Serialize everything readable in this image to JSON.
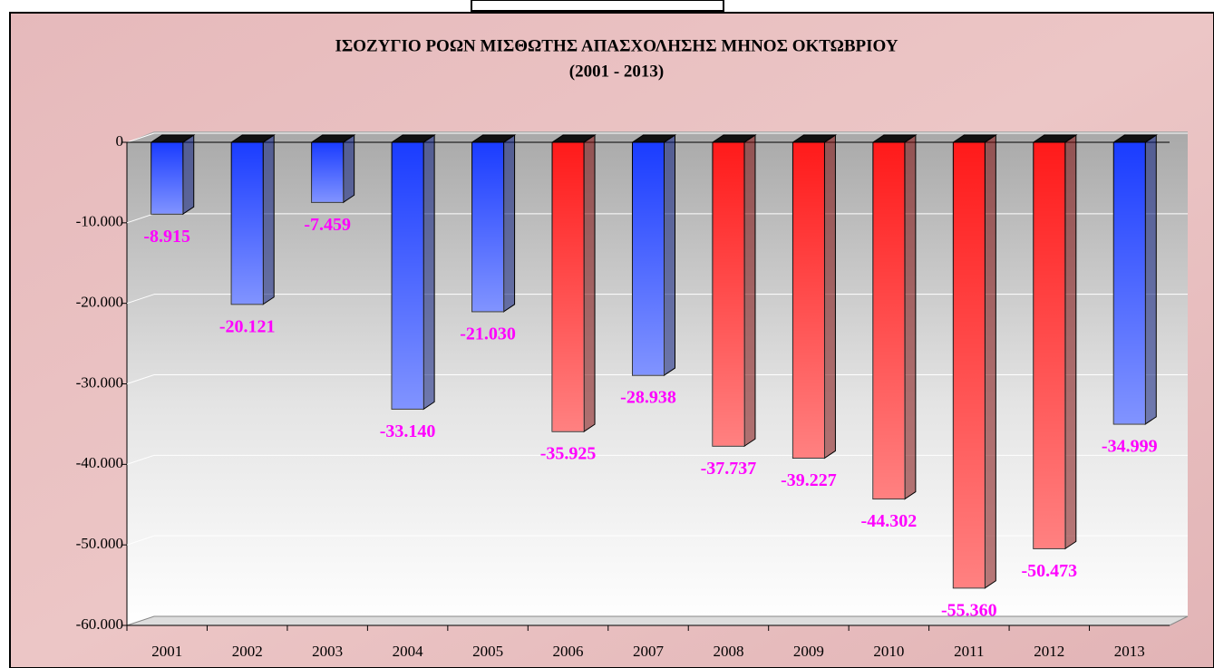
{
  "chart_data": {
    "type": "bar",
    "title": "ΙΣΟΖΥΓΙΟ ΡΟΩΝ ΜΙΣΘΩΤΗΣ ΑΠΑΣΧΟΛΗΣΗΣ ΜΗΝΟΣ ΟΚΤΩΒΡΙΟΥ",
    "subtitle": "(2001 - 2013)",
    "categories": [
      "2001",
      "2002",
      "2003",
      "2004",
      "2005",
      "2006",
      "2007",
      "2008",
      "2009",
      "2010",
      "2011",
      "2012",
      "2013"
    ],
    "values": [
      -8915,
      -20121,
      -7459,
      -33140,
      -21030,
      -35925,
      -28938,
      -37737,
      -39227,
      -44302,
      -55360,
      -50473,
      -34999
    ],
    "value_labels": [
      "-8.915",
      "-20.121",
      "-7.459",
      "-33.140",
      "-21.030",
      "-35.925",
      "-28.938",
      "-37.737",
      "-39.227",
      "-44.302",
      "-55.360",
      "-50.473",
      "-34.999"
    ],
    "colors": [
      "#1a3cff",
      "#1a3cff",
      "#1a3cff",
      "#1a3cff",
      "#1a3cff",
      "#ff1a1a",
      "#1a3cff",
      "#ff1a1a",
      "#ff1a1a",
      "#ff1a1a",
      "#ff1a1a",
      "#ff1a1a",
      "#1a3cff"
    ],
    "ylim": [
      -60000,
      0
    ],
    "yticks": [
      0,
      {
        "value": -10000,
        "label": "-10.000"
      },
      {
        "value": -20000,
        "label": "-20.000"
      },
      {
        "value": -30000,
        "label": "-30.000"
      },
      {
        "value": -40000,
        "label": "-40.000"
      },
      {
        "value": -50000,
        "label": "-50.000"
      },
      {
        "value": -60000,
        "label": "-60.000"
      }
    ],
    "grid": true
  }
}
